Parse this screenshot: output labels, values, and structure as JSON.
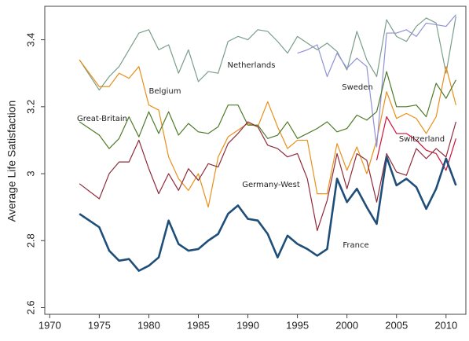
{
  "chart_data": {
    "type": "line",
    "y_label": "Average Life Satisfaction",
    "x": [
      1973,
      1975,
      1976,
      1977,
      1978,
      1979,
      1980,
      1981,
      1982,
      1983,
      1984,
      1985,
      1986,
      1987,
      1988,
      1989,
      1990,
      1991,
      1992,
      1993,
      1994,
      1995,
      1996,
      1997,
      1998,
      1999,
      2000,
      2001,
      2002,
      2003,
      2004,
      2005,
      2006,
      2007,
      2008,
      2009,
      2010,
      2011
    ],
    "xlim": [
      1969.5,
      2012
    ],
    "xticks": [
      1970,
      1975,
      1980,
      1985,
      1990,
      1995,
      2000,
      2005,
      2010
    ],
    "ylim": [
      2.58,
      3.5
    ],
    "yticks": [
      2.6,
      2.8,
      3,
      3.2,
      3.4
    ],
    "grid": false,
    "series": [
      {
        "name": "Netherlands",
        "color": "#7a9e8a",
        "width": 1.2,
        "values": [
          3.34,
          3.25,
          3.29,
          3.32,
          3.37,
          3.42,
          3.43,
          3.37,
          3.385,
          3.3,
          3.37,
          3.275,
          3.305,
          3.3,
          3.395,
          3.41,
          3.4,
          3.43,
          3.425,
          3.395,
          3.36,
          3.41,
          3.39,
          3.37,
          3.39,
          3.365,
          3.31,
          3.425,
          3.34,
          3.29,
          3.46,
          3.41,
          3.395,
          3.44,
          3.465,
          3.45,
          3.3,
          3.47
        ]
      },
      {
        "name": "Belgium",
        "color": "#e8901a",
        "width": 1.2,
        "values": [
          3.34,
          3.26,
          3.26,
          3.3,
          3.285,
          3.32,
          3.205,
          3.19,
          3.05,
          2.985,
          2.95,
          3.0,
          2.9,
          3.05,
          3.11,
          3.13,
          3.15,
          3.14,
          3.215,
          3.14,
          3.075,
          3.1,
          3.1,
          2.94,
          2.94,
          3.09,
          3.01,
          3.08,
          3.0,
          3.1,
          3.245,
          3.165,
          3.18,
          3.165,
          3.12,
          3.17,
          3.32,
          3.205
        ]
      },
      {
        "name": "Sweden",
        "color": "#9090d8",
        "width": 1.2,
        "values": [
          null,
          null,
          null,
          null,
          null,
          null,
          null,
          null,
          null,
          null,
          null,
          null,
          null,
          null,
          null,
          null,
          null,
          null,
          null,
          null,
          null,
          3.36,
          3.37,
          3.385,
          3.29,
          3.36,
          3.315,
          3.345,
          3.32,
          3.08,
          3.42,
          3.42,
          3.43,
          3.41,
          3.45,
          3.445,
          3.44,
          3.475
        ]
      },
      {
        "name": "Great-Britain",
        "color": "#4f7a2a",
        "width": 1.2,
        "values": [
          3.155,
          3.115,
          3.075,
          3.105,
          3.17,
          3.11,
          3.185,
          3.12,
          3.185,
          3.115,
          3.15,
          3.125,
          3.12,
          3.14,
          3.205,
          3.205,
          3.145,
          3.145,
          3.105,
          3.115,
          3.155,
          3.105,
          3.12,
          3.135,
          3.155,
          3.125,
          3.135,
          3.175,
          3.16,
          3.185,
          3.305,
          3.2,
          3.2,
          3.205,
          3.17,
          3.27,
          3.225,
          3.28
        ]
      },
      {
        "name": "Switzerland",
        "color": "#d0103a",
        "width": 1.2,
        "values": [
          null,
          null,
          null,
          null,
          null,
          null,
          null,
          null,
          null,
          null,
          null,
          null,
          null,
          null,
          null,
          null,
          null,
          null,
          null,
          null,
          null,
          null,
          null,
          null,
          null,
          null,
          null,
          null,
          null,
          3.04,
          3.17,
          3.12,
          3.12,
          3.1,
          3.07,
          3.06,
          3.01,
          3.105
        ]
      },
      {
        "name": "Germany-West",
        "color": "#8e2a3a",
        "width": 1.2,
        "values": [
          2.97,
          2.925,
          3.0,
          3.035,
          3.035,
          3.1,
          3.015,
          2.94,
          3.0,
          2.95,
          3.015,
          2.98,
          3.03,
          3.02,
          3.09,
          3.12,
          3.155,
          3.14,
          3.085,
          3.075,
          3.05,
          3.06,
          2.985,
          2.83,
          2.92,
          3.06,
          2.955,
          3.06,
          3.04,
          2.915,
          3.06,
          3.005,
          2.995,
          3.075,
          3.045,
          3.075,
          3.05,
          3.155
        ]
      },
      {
        "name": "France",
        "color": "#1f4e79",
        "width": 2.6,
        "values": [
          2.88,
          2.84,
          2.77,
          2.74,
          2.745,
          2.71,
          2.725,
          2.75,
          2.86,
          2.79,
          2.77,
          2.775,
          2.8,
          2.82,
          2.88,
          2.905,
          2.865,
          2.86,
          2.82,
          2.75,
          2.815,
          2.79,
          2.775,
          2.755,
          2.775,
          2.985,
          2.915,
          2.955,
          2.9,
          2.85,
          3.05,
          2.965,
          2.985,
          2.96,
          2.895,
          2.955,
          3.045,
          2.965
        ]
      }
    ]
  }
}
